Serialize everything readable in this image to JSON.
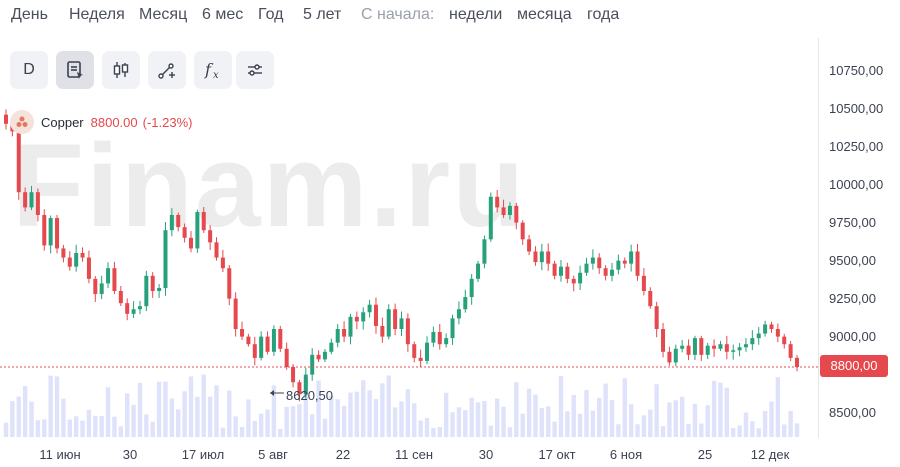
{
  "timeframes": {
    "items": [
      {
        "label": "День"
      },
      {
        "label": "Неделя"
      },
      {
        "label": "Месяц"
      },
      {
        "label": "6 мес"
      },
      {
        "label": "Год"
      },
      {
        "label": "5 лет"
      }
    ],
    "since_label": "С начала:",
    "since_items": [
      {
        "label": "недели"
      },
      {
        "label": "месяца"
      },
      {
        "label": "года"
      }
    ]
  },
  "toolbar": {
    "interval_label": "D",
    "icons": [
      "chart-type-icon",
      "candlestick-icon",
      "drawing-tools-icon",
      "indicators-icon",
      "settings-sliders-icon"
    ]
  },
  "legend": {
    "instrument": "Copper",
    "price": "8800.00",
    "change": "(-1.23%)"
  },
  "watermark": "Finam.ru",
  "colors": {
    "up": "#26a17b",
    "down": "#e5484d",
    "volume": "#dfe2fb",
    "accent": "#e5484d"
  },
  "chart_data": {
    "type": "candlestick",
    "title": "",
    "y_ticks": [
      "10750,00",
      "10500,00",
      "10250,00",
      "10000,00",
      "9750,00",
      "9500,00",
      "9250,00",
      "9000,00",
      "8500,00"
    ],
    "x_ticks": [
      "11 июн",
      "30",
      "17 июл",
      "5 авг",
      "22",
      "11 сен",
      "30",
      "17 окт",
      "6 ноя",
      "25",
      "12 дек"
    ],
    "ylim": [
      8400,
      10900
    ],
    "last_price": "8800,00",
    "last_price_value": 8800,
    "min_label": "8620,50",
    "min_value": 8620.5,
    "closes": [
      10400,
      10350,
      9950,
      9850,
      9950,
      9800,
      9600,
      9780,
      9580,
      9520,
      9460,
      9550,
      9520,
      9380,
      9280,
      9350,
      9450,
      9300,
      9220,
      9150,
      9180,
      9200,
      9400,
      9300,
      9320,
      9700,
      9800,
      9720,
      9650,
      9580,
      9820,
      9700,
      9620,
      9520,
      9450,
      9250,
      9050,
      9000,
      8950,
      8860,
      9000,
      8900,
      9050,
      8920,
      8800,
      8700,
      8620,
      8750,
      8880,
      8850,
      8900,
      8960,
      9050,
      9000,
      9130,
      9100,
      9160,
      9210,
      9070,
      9000,
      9180,
      9050,
      9120,
      8950,
      8860,
      8840,
      8960,
      9030,
      8950,
      8990,
      9120,
      9180,
      9260,
      9380,
      9480,
      9640,
      9920,
      9850,
      9800,
      9860,
      9750,
      9640,
      9560,
      9490,
      9560,
      9480,
      9400,
      9460,
      9380,
      9350,
      9420,
      9480,
      9520,
      9450,
      9400,
      9440,
      9500,
      9480,
      9560,
      9400,
      9300,
      9200,
      9050,
      8900,
      8830,
      8920,
      8940,
      8880,
      8990,
      8880,
      8940,
      8920,
      8950,
      8900,
      8910,
      8930,
      8950,
      8990,
      9020,
      9080,
      9050,
      9000,
      8950,
      8860,
      8800
    ]
  }
}
